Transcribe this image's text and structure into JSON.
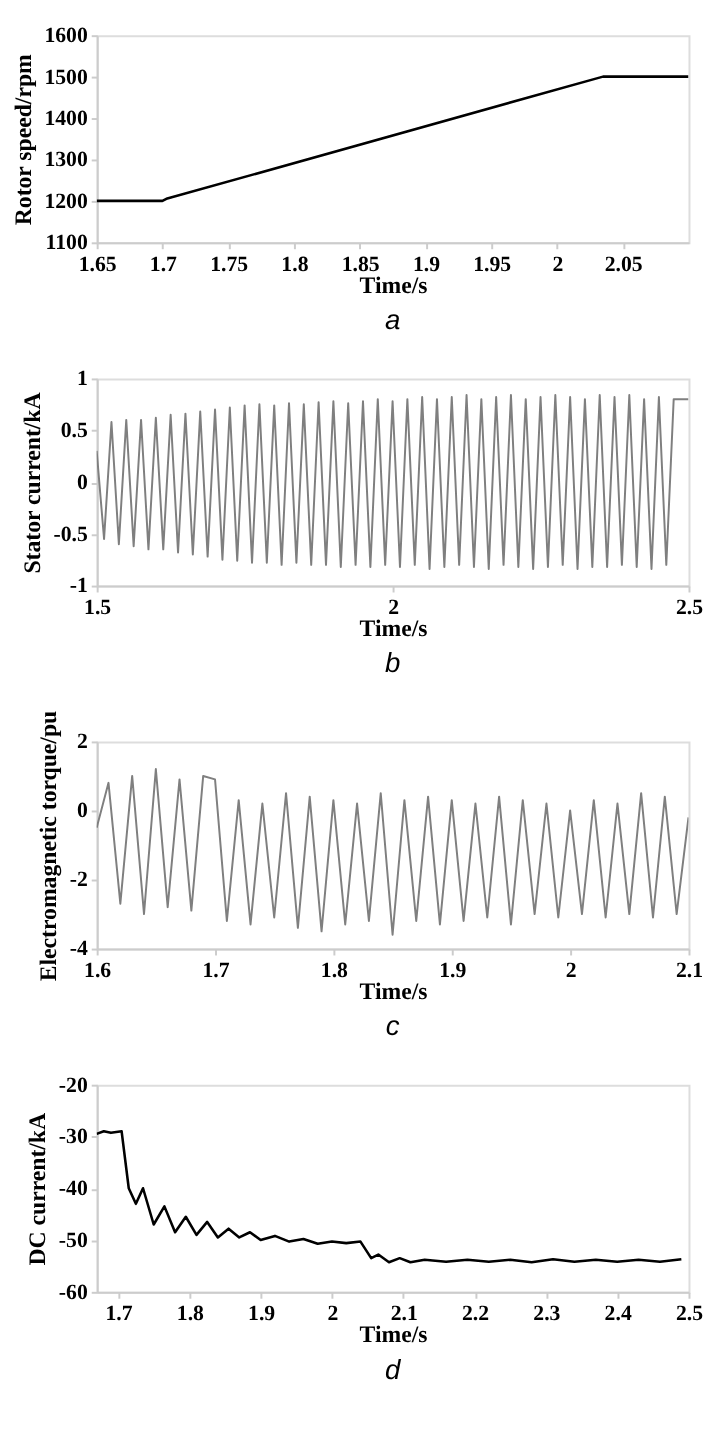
{
  "chart_data": [
    {
      "type": "line",
      "title": "a",
      "xlabel": "Time/s",
      "ylabel": "Rotor speed/rpm",
      "xlim": [
        1.65,
        2.1
      ],
      "xticks": [
        1.65,
        1.7,
        1.75,
        1.8,
        1.85,
        1.9,
        1.95,
        2,
        2.05
      ],
      "ylim": [
        1100,
        1600
      ],
      "yticks": [
        1100,
        1200,
        1300,
        1400,
        1500,
        1600
      ],
      "grid": false,
      "line_style": "solid",
      "series": [
        {
          "color": "#000000",
          "x": [
            1.65,
            1.7,
            1.703,
            2.035,
            2.1
          ],
          "values": [
            1200,
            1200,
            1205,
            1500,
            1500
          ]
        }
      ]
    },
    {
      "type": "line",
      "title": "b",
      "xlabel": "Time/s",
      "ylabel": "Stator current/kA",
      "xlim": [
        1.5,
        2.5
      ],
      "xticks": [
        1.5,
        2,
        2.5
      ],
      "ylim": [
        -1,
        1
      ],
      "yticks": [
        -1,
        -0.5,
        0,
        0.5,
        1
      ],
      "grid": false,
      "line_style": "solid",
      "series": [
        {
          "color": "#7f7f7f",
          "x": [
            1.5,
            1.5125,
            1.525,
            1.5375,
            1.55,
            1.5625,
            1.575,
            1.5875,
            1.6,
            1.6125,
            1.625,
            1.6375,
            1.65,
            1.6625,
            1.675,
            1.6875,
            1.7,
            1.7125,
            1.725,
            1.7375,
            1.75,
            1.7625,
            1.775,
            1.7875,
            1.8,
            1.8125,
            1.825,
            1.8375,
            1.85,
            1.8625,
            1.875,
            1.8875,
            1.9,
            1.9125,
            1.925,
            1.9375,
            1.95,
            1.9625,
            1.975,
            1.9875,
            2.0,
            2.0125,
            2.025,
            2.0375,
            2.05,
            2.0625,
            2.075,
            2.0875,
            2.1,
            2.1125,
            2.125,
            2.1375,
            2.15,
            2.1625,
            2.175,
            2.1875,
            2.2,
            2.2125,
            2.225,
            2.2375,
            2.25,
            2.2625,
            2.275,
            2.2875,
            2.3,
            2.3125,
            2.325,
            2.3375,
            2.35,
            2.3625,
            2.375,
            2.3875,
            2.4,
            2.4125,
            2.425,
            2.4375,
            2.45,
            2.4625,
            2.475,
            2.4875,
            2.5
          ],
          "values": [
            0.3,
            -0.55,
            0.58,
            -0.6,
            0.6,
            -0.62,
            0.6,
            -0.65,
            0.62,
            -0.65,
            0.65,
            -0.68,
            0.66,
            -0.7,
            0.68,
            -0.72,
            0.7,
            -0.75,
            0.72,
            -0.76,
            0.74,
            -0.78,
            0.75,
            -0.78,
            0.74,
            -0.8,
            0.76,
            -0.78,
            0.75,
            -0.8,
            0.77,
            -0.8,
            0.78,
            -0.82,
            0.76,
            -0.8,
            0.78,
            -0.82,
            0.8,
            -0.8,
            0.78,
            -0.82,
            0.8,
            -0.8,
            0.82,
            -0.84,
            0.8,
            -0.82,
            0.82,
            -0.8,
            0.84,
            -0.82,
            0.8,
            -0.84,
            0.82,
            -0.8,
            0.84,
            -0.82,
            0.8,
            -0.84,
            0.82,
            -0.82,
            0.84,
            -0.8,
            0.82,
            -0.84,
            0.8,
            -0.82,
            0.84,
            -0.82,
            0.82,
            -0.8,
            0.84,
            -0.82,
            0.8,
            -0.84,
            0.82,
            -0.8,
            0.8,
            0.8,
            0.8
          ]
        }
      ]
    },
    {
      "type": "line",
      "title": "c",
      "xlabel": "Time/s",
      "ylabel": "Electromagnetic torque/pu",
      "xlim": [
        1.6,
        2.1
      ],
      "xticks": [
        1.6,
        1.7,
        1.8,
        1.9,
        2,
        2.1
      ],
      "ylim": [
        -4,
        2
      ],
      "yticks": [
        -4,
        -2,
        0,
        2
      ],
      "grid": false,
      "line_style": "solid",
      "series": [
        {
          "color": "#7f7f7f",
          "x": [
            1.6,
            1.61,
            1.62,
            1.63,
            1.64,
            1.65,
            1.66,
            1.67,
            1.68,
            1.69,
            1.7,
            1.71,
            1.72,
            1.73,
            1.74,
            1.75,
            1.76,
            1.77,
            1.78,
            1.79,
            1.8,
            1.81,
            1.82,
            1.83,
            1.84,
            1.85,
            1.86,
            1.87,
            1.88,
            1.89,
            1.9,
            1.91,
            1.92,
            1.93,
            1.94,
            1.95,
            1.96,
            1.97,
            1.98,
            1.99,
            2.0,
            2.01,
            2.02,
            2.03,
            2.04,
            2.05,
            2.06,
            2.07,
            2.08,
            2.09,
            2.1
          ],
          "values": [
            -0.5,
            0.8,
            -2.7,
            1.0,
            -3.0,
            1.2,
            -2.8,
            0.9,
            -2.9,
            1.0,
            0.9,
            -3.2,
            0.3,
            -3.3,
            0.2,
            -3.1,
            0.5,
            -3.4,
            0.4,
            -3.5,
            0.3,
            -3.3,
            0.2,
            -3.2,
            0.5,
            -3.6,
            0.3,
            -3.2,
            0.4,
            -3.3,
            0.3,
            -3.2,
            0.2,
            -3.1,
            0.4,
            -3.3,
            0.3,
            -3.0,
            0.2,
            -3.1,
            0.0,
            -3.0,
            0.3,
            -3.1,
            0.2,
            -3.0,
            0.5,
            -3.1,
            0.4,
            -3.0,
            -0.2
          ]
        }
      ]
    },
    {
      "type": "line",
      "title": "d",
      "xlabel": "Time/s",
      "ylabel": "DC current/kA",
      "xlim": [
        1.67,
        2.5
      ],
      "xticks": [
        1.7,
        1.8,
        1.9,
        2,
        2.1,
        2.2,
        2.3,
        2.4,
        2.5
      ],
      "ylim": [
        -60,
        -20
      ],
      "yticks": [
        -60,
        -50,
        -40,
        -30,
        -20
      ],
      "grid": false,
      "line_style": "solid",
      "series": [
        {
          "color": "#000000",
          "x": [
            1.67,
            1.68,
            1.69,
            1.705,
            1.715,
            1.725,
            1.735,
            1.75,
            1.765,
            1.78,
            1.795,
            1.81,
            1.825,
            1.84,
            1.855,
            1.87,
            1.885,
            1.9,
            1.92,
            1.94,
            1.96,
            1.98,
            2.0,
            2.02,
            2.04,
            2.055,
            2.065,
            2.08,
            2.095,
            2.11,
            2.13,
            2.16,
            2.19,
            2.22,
            2.25,
            2.28,
            2.31,
            2.34,
            2.37,
            2.4,
            2.43,
            2.46,
            2.49
          ],
          "values": [
            -29.5,
            -29,
            -29.3,
            -29,
            -40,
            -43,
            -40,
            -47,
            -43.5,
            -48.5,
            -45.5,
            -49,
            -46.5,
            -49.5,
            -47.8,
            -49.5,
            -48.5,
            -50,
            -49.2,
            -50.3,
            -49.8,
            -50.7,
            -50.3,
            -50.6,
            -50.3,
            -53.5,
            -52.8,
            -54.3,
            -53.5,
            -54.3,
            -53.8,
            -54.2,
            -53.8,
            -54.2,
            -53.8,
            -54.3,
            -53.7,
            -54.2,
            -53.8,
            -54.2,
            -53.8,
            -54.2,
            -53.7
          ]
        }
      ]
    }
  ]
}
